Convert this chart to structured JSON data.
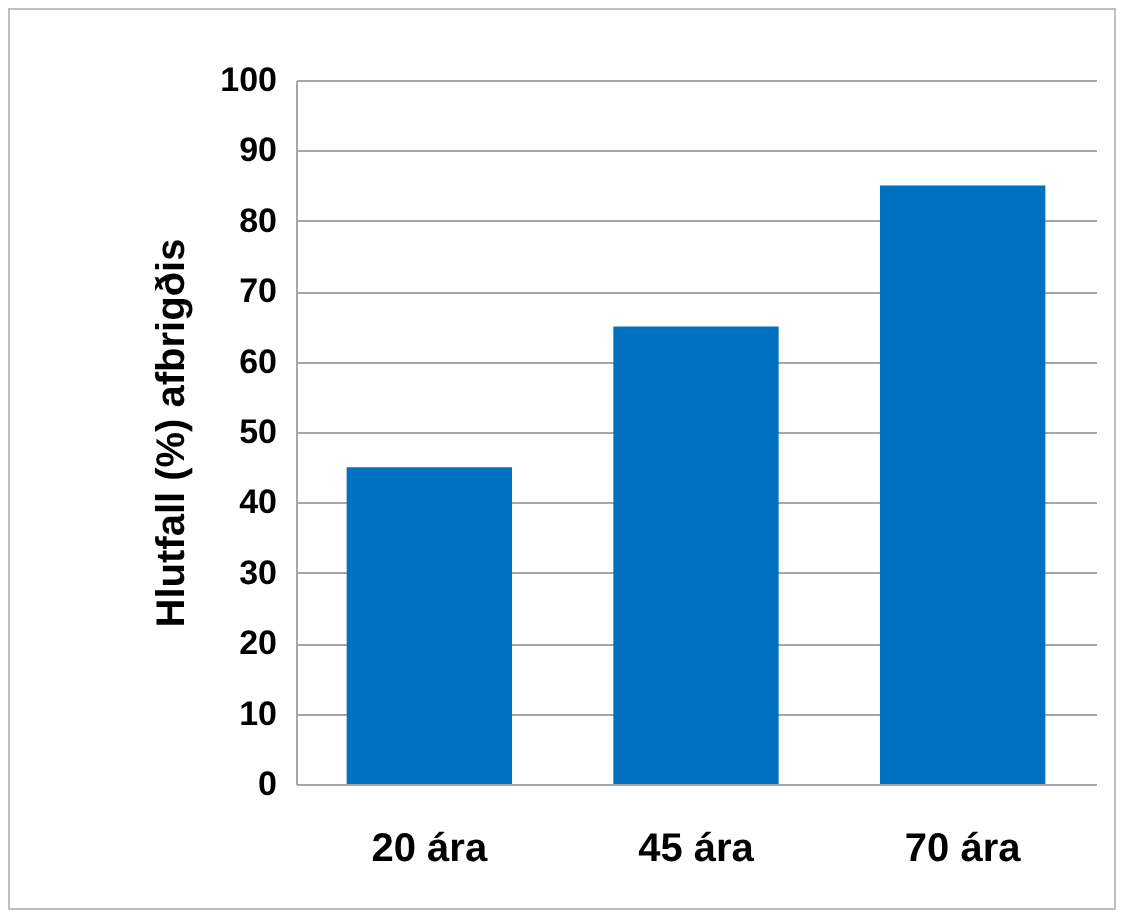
{
  "chart_data": {
    "type": "bar",
    "ylabel": "Hlutfall (%) afbrigðis",
    "categories": [
      "20 ára",
      "45 ára",
      "70 ára"
    ],
    "values": [
      45,
      65,
      85
    ],
    "color": "#0070c0",
    "ylim": [
      0,
      100
    ],
    "yticks": [
      0,
      10,
      20,
      30,
      40,
      50,
      60,
      70,
      80,
      90,
      100
    ],
    "grid": "y"
  }
}
